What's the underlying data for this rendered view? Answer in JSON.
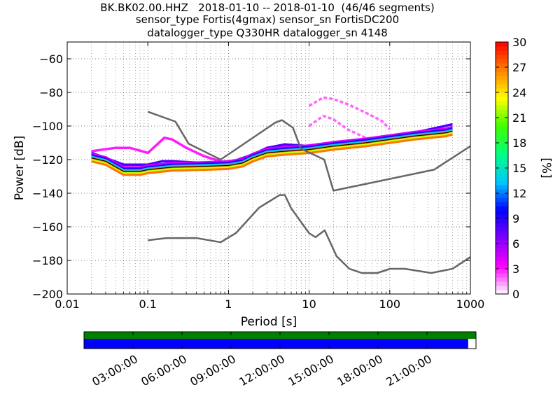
{
  "header": {
    "line1": "BK.BK02.00.HHZ   2018-01-10 -- 2018-01-10  (46/46 segments)",
    "line2": "sensor_type Fortis(4gmax) sensor_sn FortisDC200",
    "line3": "datalogger_type Q330HR datalogger_sn 4148"
  },
  "chart_data": {
    "type": "heatmap",
    "title": "BK.BK02.00.HHZ   2018-01-10 -- 2018-01-10  (46/46 segments)",
    "xlabel": "Period [s]",
    "ylabel": "Power [dB]",
    "x_scale": "log",
    "xlim": [
      0.01,
      1000
    ],
    "ylim": [
      -200,
      -50
    ],
    "x_ticks": [
      0.01,
      0.1,
      1,
      10,
      100,
      1000
    ],
    "x_tick_labels": [
      "0.01",
      "0.1",
      "1",
      "10",
      "100",
      "1000"
    ],
    "y_ticks": [
      -200,
      -180,
      -160,
      -140,
      -120,
      -100,
      -80,
      -60
    ],
    "y_tick_labels": [
      "−200",
      "−180",
      "−160",
      "−140",
      "−120",
      "−100",
      "−80",
      "−60"
    ],
    "grid": true,
    "colorbar": {
      "label": "[%]",
      "range": [
        0,
        30
      ],
      "ticks": [
        0,
        3,
        6,
        9,
        12,
        15,
        18,
        21,
        24,
        27,
        30
      ],
      "tick_labels": [
        "0",
        "3",
        "6",
        "9",
        "12",
        "15",
        "18",
        "21",
        "24",
        "27",
        "30"
      ],
      "colormap": [
        "#ffffff",
        "#ff00ff",
        "#8000ff",
        "#0000ff",
        "#00c8ff",
        "#00ff80",
        "#40ff00",
        "#ffff00",
        "#ff8000",
        "#ff0000"
      ]
    },
    "noise_models": [
      {
        "model": "high",
        "x": [
          0.1,
          0.22,
          0.32,
          0.8,
          3.8,
          4.6,
          6.3,
          7.9,
          15.4,
          20,
          354.8,
          1000
        ],
        "y": [
          -91.5,
          -97.4,
          -110.5,
          -120,
          -98,
          -96.5,
          -101,
          -113.5,
          -120,
          -138.5,
          -126,
          -112
        ]
      },
      {
        "model": "low",
        "x": [
          0.1,
          0.17,
          0.4,
          0.8,
          1.24,
          2.4,
          4.3,
          5,
          6,
          10,
          12,
          15.6,
          21.9,
          31.6,
          45,
          70,
          101,
          154,
          328,
          600,
          1000
        ],
        "y": [
          -168,
          -166.7,
          -166.7,
          -169.2,
          -163.7,
          -148.6,
          -141.1,
          -141.1,
          -149,
          -163.8,
          -166.2,
          -162.1,
          -177.5,
          -185,
          -187.5,
          -187.5,
          -185,
          -185,
          -187.5,
          -185,
          -178
        ]
      }
    ],
    "psd_density": [
      {
        "name": "dominant",
        "percent": 28,
        "x": [
          0.02,
          0.03,
          0.05,
          0.08,
          0.1,
          0.2,
          0.5,
          1,
          1.5,
          2,
          3,
          5,
          10,
          20,
          50,
          100,
          200,
          500,
          600
        ],
        "y": [
          -119,
          -121,
          -127,
          -127,
          -126,
          -124.5,
          -124,
          -123.5,
          -122,
          -119,
          -116,
          -115,
          -114,
          -112,
          -110,
          -108,
          -106,
          -104,
          -103
        ]
      },
      {
        "name": "upper-spread",
        "percent": 8,
        "x": [
          0.02,
          0.03,
          0.05,
          0.1,
          0.15,
          0.2,
          0.5,
          1,
          2,
          3,
          5,
          10,
          20,
          50,
          100,
          200,
          600
        ],
        "y": [
          -116,
          -119,
          -123,
          -123,
          -121,
          -121,
          -122,
          -122,
          -117,
          -113,
          -111,
          -112,
          -110,
          -108,
          -107,
          -104,
          -99
        ]
      },
      {
        "name": "microseism-upper",
        "percent": 3,
        "x": [
          0.02,
          0.04,
          0.06,
          0.1,
          0.13,
          0.16,
          0.2,
          0.3,
          0.5,
          0.8,
          1
        ],
        "y": [
          -115,
          -113,
          -113,
          -116,
          -111,
          -107,
          -108,
          -113,
          -118,
          -121,
          -123
        ]
      },
      {
        "name": "long-period-tail",
        "percent": 2,
        "x": [
          10,
          15,
          20,
          30,
          50,
          80,
          100
        ],
        "y": [
          -88,
          -83,
          -84,
          -87,
          -92,
          -97,
          -102
        ]
      },
      {
        "name": "long-period-tail-2",
        "percent": 2,
        "x": [
          10,
          15,
          20,
          30,
          50
        ],
        "y": [
          -100,
          -94,
          -96,
          -102,
          -107
        ]
      }
    ]
  },
  "time_bar": {
    "start_hours": 0,
    "end_hours": 24,
    "coverage_top_fraction": 1.0,
    "coverage_bottom_fraction": 0.98,
    "top_color": "#008000",
    "bottom_color": "#0000ff",
    "ticks_hours": [
      3,
      6,
      9,
      12,
      15,
      18,
      21
    ],
    "tick_labels": [
      "03:00:00",
      "06:00:00",
      "09:00:00",
      "12:00:00",
      "15:00:00",
      "18:00:00",
      "21:00:00"
    ]
  }
}
